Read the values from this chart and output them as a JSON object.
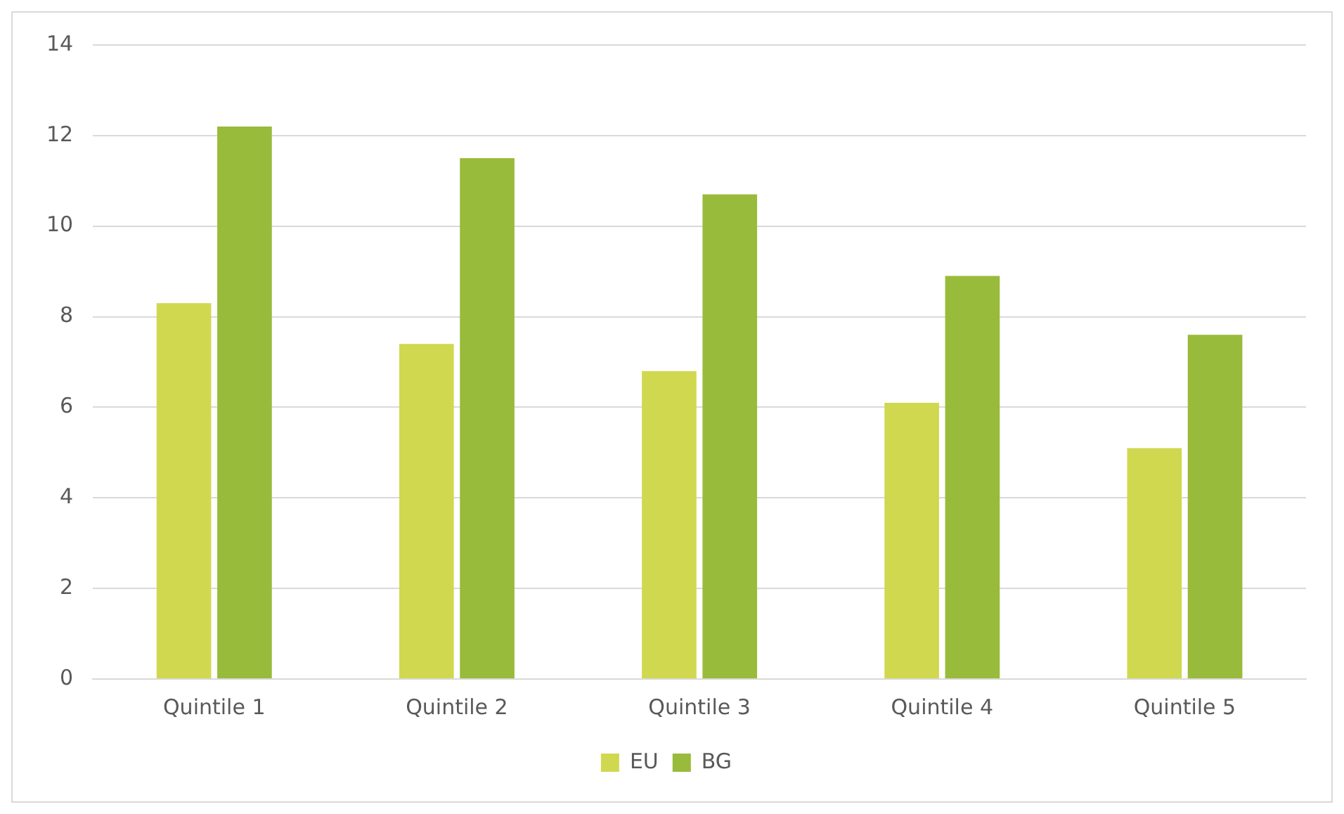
{
  "chart_data": {
    "type": "bar",
    "categories": [
      "Quintile 1",
      "Quintile 2",
      "Quintile 3",
      "Quintile 4",
      "Quintile 5"
    ],
    "series": [
      {
        "name": "EU",
        "color": "#d0d84f",
        "values": [
          8.3,
          7.4,
          6.8,
          6.1,
          5.1
        ]
      },
      {
        "name": "BG",
        "color": "#99bb3b",
        "values": [
          12.2,
          11.5,
          10.7,
          8.9,
          7.6
        ]
      }
    ],
    "ylim": [
      0,
      14
    ],
    "yticks": [
      0,
      2,
      4,
      6,
      8,
      10,
      12,
      14
    ],
    "grid": "y",
    "legend": "bottom"
  }
}
